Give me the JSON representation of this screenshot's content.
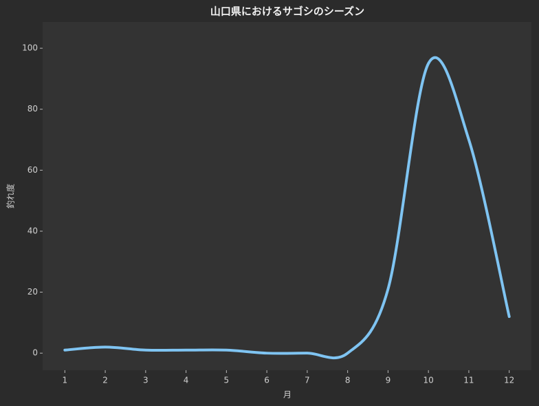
{
  "chart_data": {
    "type": "line",
    "title": "山口県におけるサゴシのシーズン",
    "x_label": "月",
    "y_label": "釣れ度",
    "x": [
      1,
      2,
      3,
      4,
      5,
      6,
      7,
      8,
      9,
      10,
      11,
      12
    ],
    "series": [
      {
        "color": "#7fc4f2",
        "values": [
          1,
          2,
          1,
          1,
          1,
          0,
          0,
          0,
          21,
          95,
          70,
          12
        ]
      }
    ],
    "xlim": [
      0.45,
      12.55
    ],
    "xticks": [
      1,
      2,
      3,
      4,
      5,
      6,
      7,
      8,
      9,
      10,
      11,
      12
    ],
    "ylim": [
      -5.6,
      108.6
    ],
    "yticks": [
      0,
      20,
      40,
      60,
      80,
      100
    ],
    "grid": false
  }
}
